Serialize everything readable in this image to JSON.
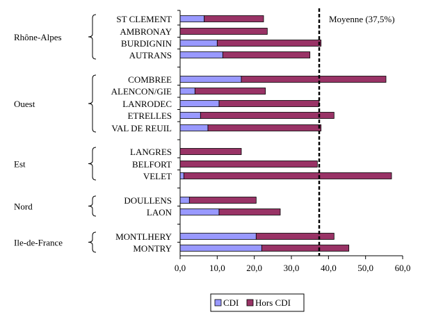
{
  "chart_data": {
    "type": "bar",
    "orientation": "horizontal",
    "stacked": true,
    "xlim": [
      0,
      60
    ],
    "x_ticks": [
      "0,0",
      "10,0",
      "20,0",
      "30,0",
      "40,0",
      "50,0",
      "60,0"
    ],
    "grid": false,
    "legend_placement": "bottom",
    "colors": {
      "CDI": "#9999ff",
      "Hors CDI": "#993366"
    },
    "series": [
      {
        "name": "CDI",
        "values": [
          6.5,
          0,
          10,
          11.5,
          16.5,
          4,
          10.5,
          5.5,
          7.5,
          0,
          0,
          1,
          2.5,
          10.5,
          20.5,
          22
        ]
      },
      {
        "name": "Hors CDI",
        "values": [
          16,
          23.5,
          28,
          23.5,
          39,
          19,
          27,
          36,
          30.5,
          16.5,
          37,
          56,
          18,
          16.5,
          21,
          23.5
        ]
      }
    ],
    "categories": [
      "ST CLEMENT",
      "AMBRONAY",
      "BURDIGNIN",
      "AUTRANS",
      "COMBREE",
      "ALENCON/GIE",
      "LANRODEC",
      "ETRELLES",
      "VAL DE REUIL",
      "LANGRES",
      "BELFORT",
      "VELET",
      "DOULLENS",
      "LAON",
      "MONTLHERY",
      "MONTRY"
    ],
    "groups": [
      {
        "name": "Rhône-Alpes",
        "start": 0,
        "end": 3
      },
      {
        "name": "Ouest",
        "start": 4,
        "end": 8
      },
      {
        "name": "Est",
        "start": 9,
        "end": 11
      },
      {
        "name": "Nord",
        "start": 12,
        "end": 13
      },
      {
        "name": "Ile-de-France",
        "start": 14,
        "end": 15
      }
    ],
    "reference_line": {
      "value": 37.5,
      "label": "Moyenne (37,5%)",
      "style": "dashed"
    }
  }
}
